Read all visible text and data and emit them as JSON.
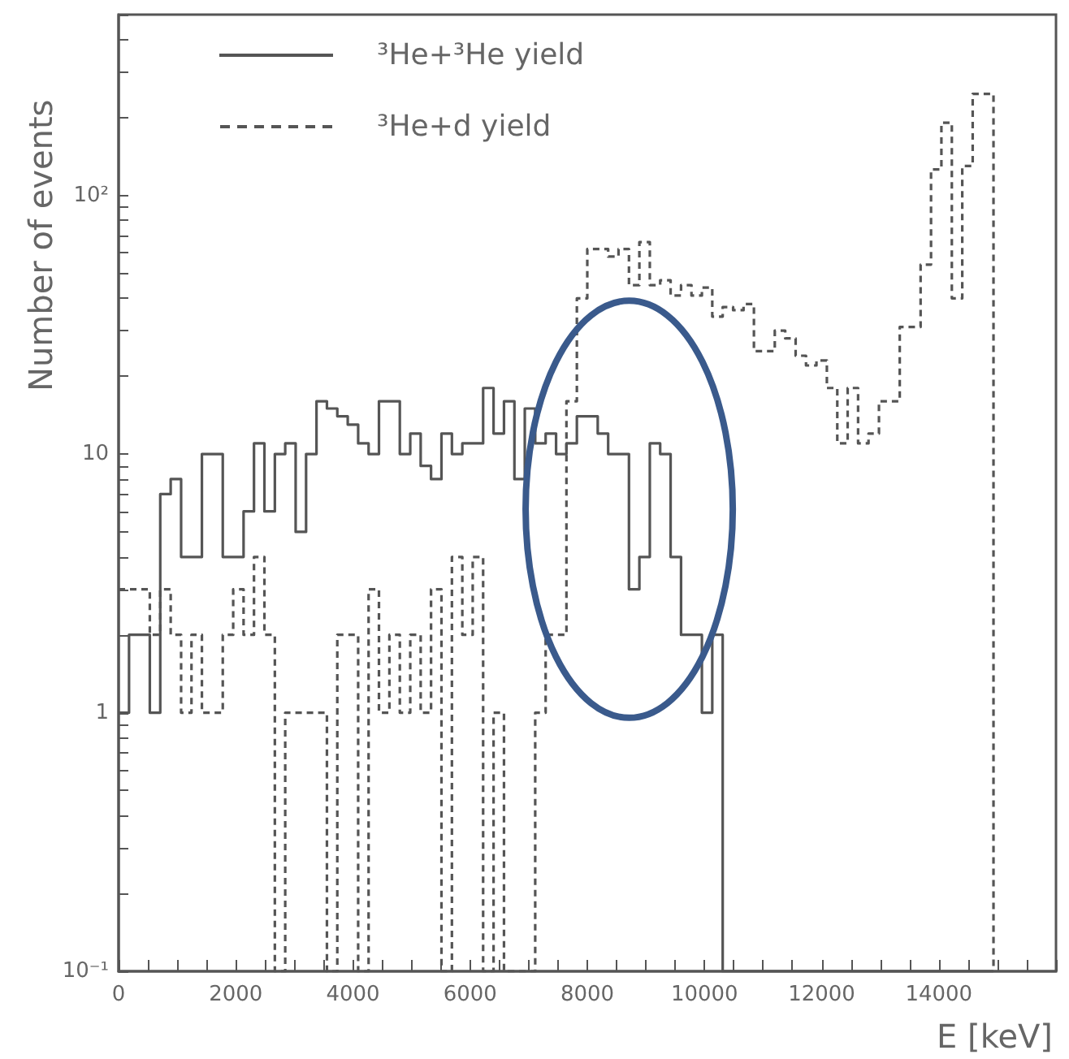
{
  "chart_data": {
    "type": "histogram",
    "xlabel": "E [keV]",
    "ylabel": "Number of events",
    "bins": [
      0,
      178,
      356,
      533,
      711,
      889,
      1067,
      1244,
      1422,
      1600,
      1778,
      1956,
      2133,
      2311,
      2489,
      2667,
      2844,
      3022,
      3200,
      3378,
      3556,
      3733,
      3911,
      4089,
      4267,
      4444,
      4622,
      4800,
      4978,
      5156,
      5333,
      5511,
      5689,
      5867,
      6044,
      6222,
      6400,
      6578,
      6756,
      6933,
      7111,
      7289,
      7467,
      7644,
      7822,
      8000,
      8178,
      8356,
      8533,
      8711,
      8889,
      9067,
      9244,
      9422,
      9600,
      9778,
      9956,
      10133,
      10311,
      10489,
      10667,
      10844,
      11022,
      11200,
      11378,
      11556,
      11733,
      11911,
      12089,
      12267,
      12444,
      12622,
      12800,
      12978,
      13156,
      13333,
      13511,
      13689,
      13867,
      14044,
      14222,
      14400,
      14578,
      14756,
      14933
    ],
    "series": [
      {
        "name": "³He+³He yield",
        "color": "#555555",
        "line_style": "solid",
        "values": [
          1,
          2,
          2,
          1,
          7,
          8,
          4,
          4,
          10,
          10,
          4,
          4,
          6,
          11,
          6,
          10,
          11,
          5,
          10,
          16,
          15,
          14,
          13,
          11,
          10,
          16,
          16,
          10,
          12,
          9,
          8,
          12,
          10,
          11,
          11,
          18,
          12,
          16,
          8,
          15,
          11,
          12,
          10,
          11,
          14,
          14,
          12,
          10,
          10,
          3,
          4,
          11,
          10,
          4,
          2,
          2,
          1,
          2,
          null,
          null,
          null,
          null,
          null,
          null,
          null,
          null,
          null,
          null,
          null,
          null,
          null,
          null,
          null,
          null,
          null,
          null,
          null,
          null,
          null,
          null,
          null,
          null,
          null,
          null
        ]
      },
      {
        "name": "³He+d yield",
        "color": "#555555",
        "line_style": "dashed",
        "values": [
          3,
          3,
          3,
          2,
          3,
          2,
          1,
          2,
          1,
          1,
          2,
          3,
          2,
          4,
          2,
          null,
          1,
          1,
          1,
          1,
          null,
          2,
          2,
          null,
          3,
          1,
          2,
          1,
          2,
          1,
          3,
          null,
          4,
          2,
          4,
          null,
          1,
          null,
          null,
          null,
          1,
          2,
          2,
          16,
          40,
          62,
          62,
          58,
          62,
          45,
          66,
          45,
          47,
          41,
          45,
          41,
          44,
          34,
          37,
          36,
          38,
          25,
          25,
          30,
          28,
          24,
          22,
          23,
          18,
          11,
          18,
          11,
          12,
          16,
          16,
          31,
          31,
          54,
          126,
          191,
          40,
          130,
          247,
          247
        ]
      }
    ],
    "xlim": [
      0,
      16000
    ],
    "xticks": [
      0,
      2000,
      4000,
      6000,
      8000,
      10000,
      12000,
      14000
    ],
    "ylim": [
      0.1,
      500
    ],
    "yticks": [
      {
        "value": 0.1,
        "label": "10⁻¹"
      },
      1,
      10,
      {
        "value": 100,
        "label": "10²"
      }
    ],
    "log": "y",
    "grid": false,
    "legend": "top left"
  }
}
